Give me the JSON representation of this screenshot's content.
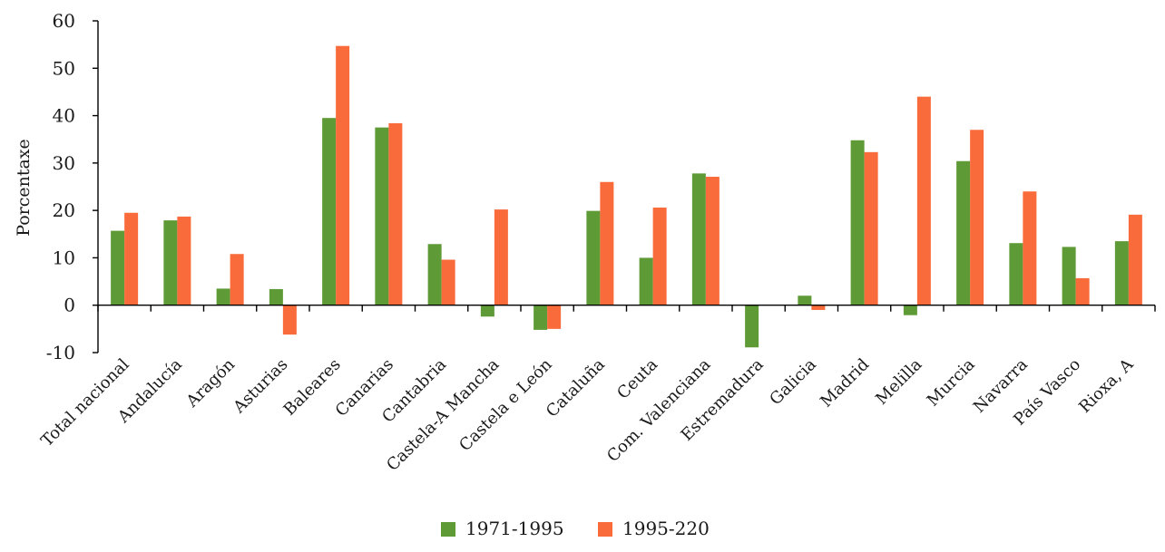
{
  "chart_data": {
    "type": "bar",
    "ylabel": "Porcentaxe",
    "xlabel": "",
    "title": "",
    "ylim": [
      -10,
      60
    ],
    "yticks": [
      -10,
      0,
      10,
      20,
      30,
      40,
      50,
      60
    ],
    "grid": false,
    "legend_position": "bottom-center",
    "categories": [
      "Total nacional",
      "Andalucía",
      "Aragón",
      "Asturias",
      "Baleares",
      "Canarias",
      "Cantabria",
      "Castela-A Mancha",
      "Castela e León",
      "Cataluña",
      "Ceuta",
      "Com. Valenciana",
      "Estremadura",
      "Galicia",
      "Madrid",
      "Melilla",
      "Murcia",
      "Navarra",
      "País Vasco",
      "Rioxa, A"
    ],
    "series": [
      {
        "name": "1971-1995",
        "color": "#5e9a35",
        "values": [
          15.7,
          17.9,
          3.5,
          3.4,
          39.5,
          37.5,
          12.9,
          -2.4,
          -5.2,
          19.9,
          10.0,
          27.8,
          -8.9,
          2.0,
          34.8,
          -2.1,
          30.4,
          13.1,
          12.3,
          13.5
        ]
      },
      {
        "name": "1995-220",
        "color": "#f96b3b",
        "values": [
          19.5,
          18.7,
          10.8,
          -6.2,
          54.7,
          38.4,
          9.6,
          20.2,
          -5.0,
          26.0,
          20.6,
          27.1,
          0.0,
          -1.0,
          32.3,
          44.0,
          37.0,
          24.0,
          5.7,
          19.1
        ]
      }
    ]
  }
}
